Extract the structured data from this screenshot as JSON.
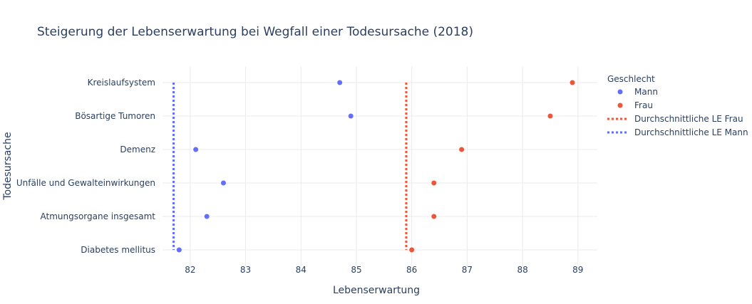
{
  "chart_data": {
    "type": "scatter",
    "title": "Steigerung der Lebenserwartung bei Wegfall einer Todesursache (2018)",
    "xlabel": "Lebenserwartung",
    "ylabel": "Todesursache",
    "xlim": [
      81.5,
      89.35
    ],
    "xticks": [
      82,
      83,
      84,
      85,
      86,
      87,
      88,
      89
    ],
    "categories": [
      "Kreislaufsystem",
      "Bösartige Tumoren",
      "Demenz",
      "Unfälle und Gewalteinwirkungen",
      "Atmungsorgane insgesamt",
      "Diabetes mellitus"
    ],
    "legend_title": "Geschlecht",
    "legend_position": "right",
    "grid": true,
    "series": [
      {
        "name": "Mann",
        "color": "#636efa",
        "marker": "dot",
        "values": [
          84.7,
          84.9,
          82.1,
          82.6,
          82.3,
          81.8
        ]
      },
      {
        "name": "Frau",
        "color": "#ef553b",
        "marker": "dot",
        "values": [
          88.9,
          88.5,
          86.9,
          86.4,
          86.4,
          86.0
        ]
      }
    ],
    "reference_lines": [
      {
        "name": "Durchschnittliche LE Frau",
        "color": "#ef553b",
        "x": 85.9,
        "style": "dotted"
      },
      {
        "name": "Durchschnittliche LE Mann",
        "color": "#636efa",
        "x": 81.7,
        "style": "dotted"
      }
    ]
  }
}
